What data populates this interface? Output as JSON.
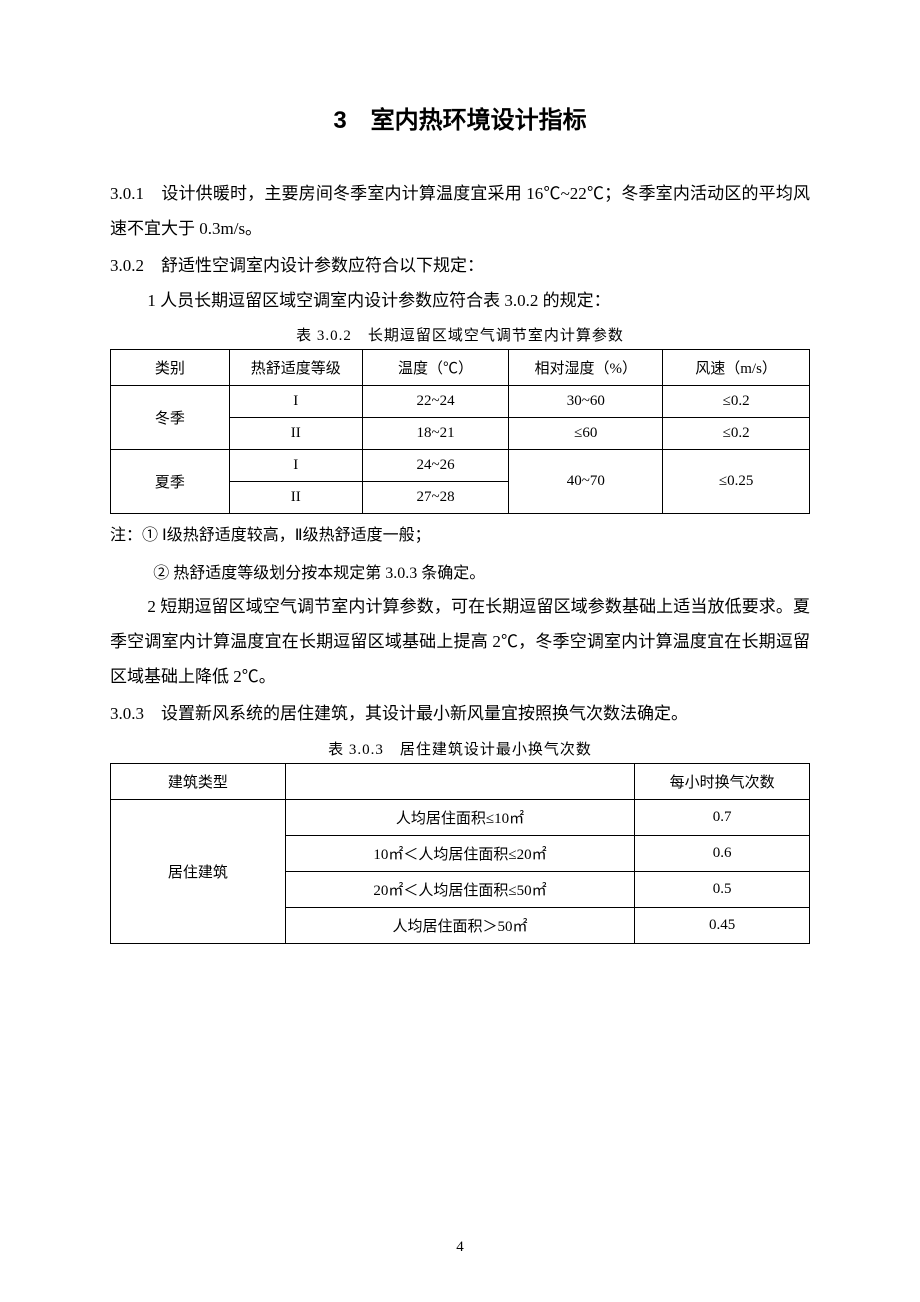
{
  "page": {
    "number": "4"
  },
  "chapter": {
    "title": "3　室内热环境设计指标"
  },
  "p301": {
    "text": "3.0.1　设计供暖时，主要房间冬季室内计算温度宜采用 16℃~22℃；冬季室内活动区的平均风速不宜大于 0.3m/s。"
  },
  "p302": {
    "lead": "3.0.2　舒适性空调室内设计参数应符合以下规定：",
    "item1": "1 人员长期逗留区域空调室内设计参数应符合表 3.0.2 的规定：",
    "table_caption": "表 3.0.2　长期逗留区域空气调节室内计算参数",
    "table": {
      "headers": [
        "类别",
        "热舒适度等级",
        "温度（℃）",
        "相对湿度（%）",
        "风速（m/s）"
      ],
      "winter_label": "冬季",
      "summer_label": "夏季",
      "rows": [
        {
          "level": "I",
          "temp": "22~24",
          "rh": "30~60",
          "ws": "≤0.2"
        },
        {
          "level": "II",
          "temp": "18~21",
          "rh": "≤60",
          "ws": "≤0.2"
        },
        {
          "level": "I",
          "temp": "24~26"
        },
        {
          "level": "II",
          "temp": "27~28"
        }
      ],
      "summer_rh": "40~70",
      "summer_ws": "≤0.25"
    },
    "note1": "注：① Ⅰ级热舒适度较高，Ⅱ级热舒适度一般；",
    "note2": "② 热舒适度等级划分按本规定第 3.0.3 条确定。",
    "item2": "2 短期逗留区域空气调节室内计算参数，可在长期逗留区域参数基础上适当放低要求。夏季空调室内计算温度宜在长期逗留区域基础上提高 2℃，冬季空调室内计算温度宜在长期逗留区域基础上降低 2℃。"
  },
  "p303": {
    "lead": "3.0.3　设置新风系统的居住建筑，其设计最小新风量宜按照换气次数法确定。",
    "table_caption": "表 3.0.3　居住建筑设计最小换气次数",
    "table": {
      "headers": [
        "建筑类型",
        "",
        "每小时换气次数"
      ],
      "type_label": "居住建筑",
      "rows": [
        {
          "cond": "人均居住面积≤10㎡",
          "val": "0.7"
        },
        {
          "cond": "10㎡＜人均居住面积≤20㎡",
          "val": "0.6"
        },
        {
          "cond": "20㎡＜人均居住面积≤50㎡",
          "val": "0.5"
        },
        {
          "cond": "人均居住面积＞50㎡",
          "val": "0.45"
        }
      ]
    }
  }
}
